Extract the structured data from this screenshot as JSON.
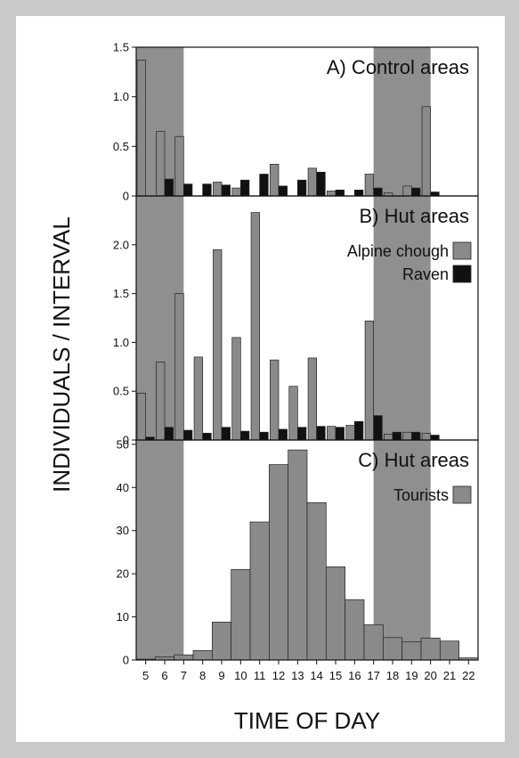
{
  "colors": {
    "background": "#c9c9c9",
    "night_band": "#8f8f8f",
    "alpine_chough": "#8a8a8a",
    "raven": "#111111",
    "tourists": "#8a8a8a",
    "axis": "#111111"
  },
  "chart_data": [
    {
      "type": "bar",
      "title": "A) Control areas",
      "x": [
        5,
        6,
        7,
        8,
        9,
        10,
        11,
        12,
        13,
        14,
        15,
        16,
        17,
        18,
        19,
        20
      ],
      "series": [
        {
          "name": "Alpine chough",
          "values": [
            1.37,
            0.65,
            0.6,
            0.0,
            0.14,
            0.08,
            0.0,
            0.32,
            0.0,
            0.28,
            0.05,
            0.0,
            0.22,
            0.03,
            0.1,
            0.9
          ]
        },
        {
          "name": "Raven",
          "values": [
            0.0,
            0.17,
            0.12,
            0.12,
            0.11,
            0.16,
            0.22,
            0.1,
            0.16,
            0.24,
            0.06,
            0.06,
            0.08,
            0.0,
            0.08,
            0.04
          ]
        }
      ],
      "ylim": [
        0,
        1.5
      ],
      "yticks": [
        "0",
        "0.5",
        "1.0",
        "1.5"
      ],
      "night_bands": [
        [
          5,
          7.5
        ],
        [
          17.5,
          20.5
        ]
      ],
      "grid": false
    },
    {
      "type": "bar",
      "title": "B) Hut areas",
      "x": [
        5,
        6,
        7,
        8,
        9,
        10,
        11,
        12,
        13,
        14,
        15,
        16,
        17,
        18,
        19,
        20
      ],
      "series": [
        {
          "name": "Alpine chough",
          "values": [
            0.48,
            0.8,
            1.5,
            0.85,
            1.95,
            1.05,
            2.33,
            0.82,
            0.55,
            0.84,
            0.14,
            0.15,
            1.22,
            0.06,
            0.08,
            0.07
          ]
        },
        {
          "name": "Raven",
          "values": [
            0.03,
            0.13,
            0.1,
            0.07,
            0.13,
            0.09,
            0.08,
            0.11,
            0.13,
            0.14,
            0.13,
            0.19,
            0.25,
            0.08,
            0.08,
            0.05
          ]
        }
      ],
      "ylim": [
        0,
        2.5
      ],
      "yticks": [
        "0",
        "0.5",
        "1.0",
        "1.5",
        "2.0"
      ],
      "legend": [
        "Alpine chough",
        "Raven"
      ],
      "legend_position": "top-right",
      "night_bands": [
        [
          5,
          7.5
        ],
        [
          17.5,
          20.5
        ]
      ],
      "grid": false
    },
    {
      "type": "bar",
      "title": "C) Hut areas",
      "x": [
        5,
        6,
        7,
        8,
        9,
        10,
        11,
        12,
        13,
        14,
        15,
        16,
        17,
        18,
        19,
        20,
        21,
        22
      ],
      "series": [
        {
          "name": "Tourists",
          "values": [
            0.2,
            0.7,
            1.2,
            2.2,
            8.8,
            21,
            32,
            45.3,
            48.7,
            36.5,
            21.6,
            14,
            8.2,
            5.2,
            4.2,
            5.1,
            4.4,
            0.5
          ]
        }
      ],
      "ylim": [
        0,
        51
      ],
      "yticks": [
        "0",
        "10",
        "20",
        "30",
        "40",
        "50"
      ],
      "legend": [
        "Tourists"
      ],
      "legend_position": "top-right",
      "night_bands": [
        [
          5,
          7.5
        ],
        [
          17.5,
          20.5
        ]
      ],
      "grid": false
    }
  ],
  "xticks": [
    "5",
    "6",
    "7",
    "8",
    "9",
    "10",
    "11",
    "12",
    "13",
    "14",
    "15",
    "16",
    "17",
    "18",
    "19",
    "20",
    "21",
    "22"
  ],
  "xlabel": "TIME OF DAY",
  "ylabel": "INDIVIDUALS / INTERVAL"
}
